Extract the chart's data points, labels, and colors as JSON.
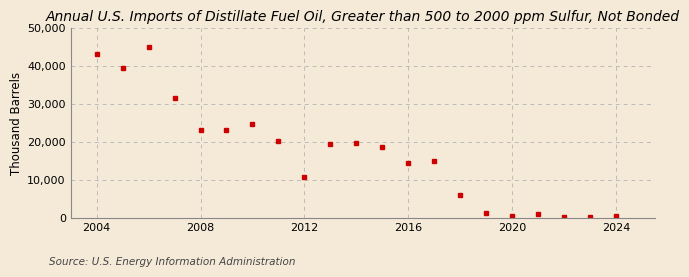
{
  "title": "Annual U.S. Imports of Distillate Fuel Oil, Greater than 500 to 2000 ppm Sulfur, Not Bonded",
  "ylabel": "Thousand Barrels",
  "source": "Source: U.S. Energy Information Administration",
  "background_color": "#f5ead8",
  "plot_background_color": "#f5ead8",
  "marker_color": "#cc0000",
  "years": [
    2004,
    2005,
    2006,
    2007,
    2008,
    2009,
    2010,
    2011,
    2012,
    2013,
    2014,
    2015,
    2016,
    2017,
    2018,
    2019,
    2020,
    2021,
    2022,
    2023,
    2024
  ],
  "values": [
    43000,
    39500,
    45000,
    31500,
    23200,
    23200,
    24800,
    20300,
    10800,
    19500,
    19800,
    18600,
    14500,
    15000,
    6100,
    1400,
    500,
    900,
    300,
    300,
    500
  ],
  "ylim": [
    0,
    50000
  ],
  "yticks": [
    0,
    10000,
    20000,
    30000,
    40000,
    50000
  ],
  "xlim": [
    2003.0,
    2025.5
  ],
  "xticks": [
    2004,
    2008,
    2012,
    2016,
    2020,
    2024
  ],
  "title_fontsize": 10,
  "ylabel_fontsize": 8.5,
  "source_fontsize": 7.5,
  "tick_fontsize": 8
}
